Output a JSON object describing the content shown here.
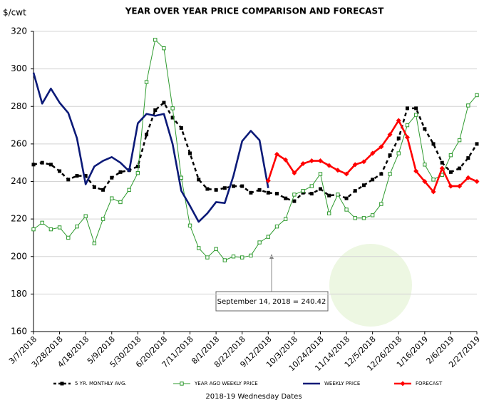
{
  "chart_data": {
    "type": "line",
    "title": "YEAR OVER YEAR PRICE COMPARISON AND FORECAST",
    "y_label": "$/cwt",
    "x_label": "2018-19 Wednesday  Dates",
    "annotation": "September 14, 2018  = 240.42",
    "categories": [
      "3/7/2018",
      null,
      null,
      "3/28/2018",
      null,
      null,
      "4/18/2018",
      null,
      null,
      "5/9/2018",
      null,
      null,
      "5/30/2018",
      null,
      null,
      "6/20/2018",
      null,
      null,
      "7/11/2018",
      null,
      null,
      "8/1/2018",
      null,
      null,
      "8/22/2018",
      null,
      null,
      "9/12/2018",
      null,
      null,
      "10/3/2018",
      null,
      null,
      "10/24/2018",
      null,
      null,
      "11/14/2018",
      null,
      null,
      "12/5/2018",
      null,
      null,
      "12/26/2018",
      null,
      null,
      "1/16/2019",
      null,
      null,
      "2/6/2019",
      null,
      null,
      "2/27/2019"
    ],
    "ylim": [
      160,
      320
    ],
    "yticks": [
      160,
      180,
      200,
      220,
      240,
      260,
      280,
      300,
      320
    ],
    "grid": true,
    "legend": "bottom",
    "series": [
      {
        "name": "5 YR. MONTHLY AVG.",
        "color": "#000000",
        "dashed": true,
        "marker": "square",
        "values": [
          249,
          250,
          249,
          245.5,
          241,
          243,
          243,
          237,
          235.5,
          242,
          245,
          246,
          248,
          265,
          278,
          282,
          274,
          268.5,
          255,
          241,
          236,
          235.5,
          236.5,
          237.5,
          237.5,
          234,
          235.5,
          234,
          233.5,
          231,
          229.5,
          234,
          233.5,
          236,
          232.5,
          233,
          231,
          235,
          238,
          241,
          244,
          254,
          263,
          279,
          279,
          268,
          260,
          250,
          245,
          247,
          252.5,
          260
        ]
      },
      {
        "name": "YEAR AGO WEEKLY PRICE",
        "color": "#2e9a2e",
        "dashed": false,
        "marker": "hollow-square",
        "values": [
          214.5,
          218,
          214.5,
          215.5,
          210,
          216,
          221.5,
          207,
          220,
          231,
          229,
          235.5,
          244.5,
          293,
          315.5,
          311,
          279,
          242,
          216.5,
          204.5,
          199.5,
          204,
          198,
          200,
          199.5,
          200.5,
          207.5,
          210.5,
          216,
          220,
          233,
          235,
          237.5,
          244,
          223,
          233,
          225,
          220.5,
          220.5,
          222,
          228,
          244,
          255,
          270,
          275.5,
          249,
          241,
          243.5,
          254,
          262,
          280.5,
          286
        ]
      },
      {
        "name": "WEEKLY PRICE",
        "color": "#0b1a78",
        "dashed": false,
        "marker": "none",
        "values": [
          298,
          281.5,
          289.5,
          282,
          276.5,
          263,
          238.5,
          248,
          251,
          253,
          250,
          245.5,
          271,
          276,
          275,
          276,
          260,
          235,
          227,
          218.5,
          223,
          229,
          228.5,
          243,
          261.5,
          267,
          262,
          236.5,
          null,
          null,
          null,
          null,
          null,
          null,
          null,
          null,
          null,
          null,
          null,
          null,
          null,
          null,
          null,
          null,
          null,
          null,
          null,
          null,
          null,
          null,
          null,
          null
        ]
      },
      {
        "name": "FORECAST",
        "color": "#ff0000",
        "dashed": false,
        "marker": "diamond",
        "values": [
          null,
          null,
          null,
          null,
          null,
          null,
          null,
          null,
          null,
          null,
          null,
          null,
          null,
          null,
          null,
          null,
          null,
          null,
          null,
          null,
          null,
          null,
          null,
          null,
          null,
          null,
          null,
          240.42,
          254.5,
          251.5,
          244.5,
          249.5,
          251,
          251,
          248.5,
          246,
          244,
          249,
          250.5,
          255,
          258.5,
          265,
          272.5,
          263.5,
          245.5,
          240,
          234.5,
          247,
          237.5,
          237.5,
          242,
          240
        ]
      }
    ]
  }
}
